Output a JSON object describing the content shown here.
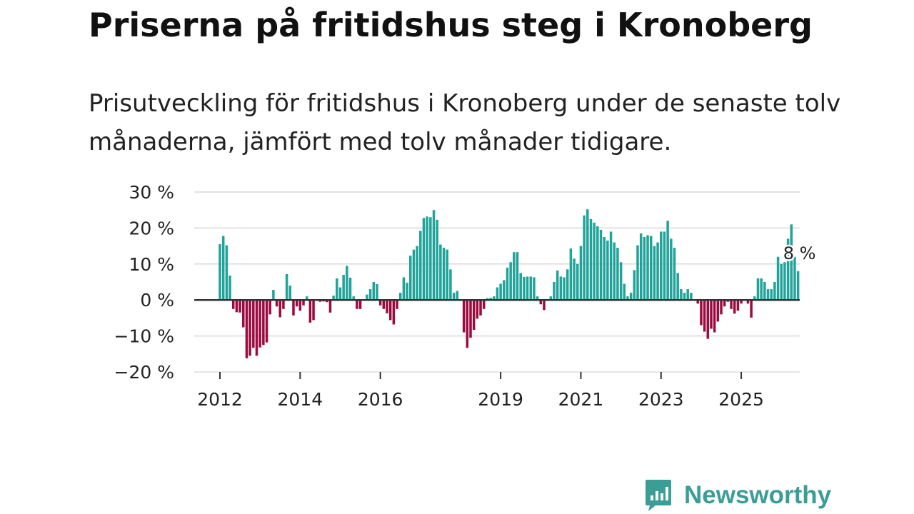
{
  "chart_data": {
    "type": "bar",
    "title": "Priserna på fritidshus steg i Kronoberg",
    "subtitle": "Prisutveckling för fritidshus i Kronoberg under de senaste tolv månaderna, jämfört med tolv månader tidigare.",
    "ylabel": "",
    "xlabel": "",
    "ylim": [
      -20,
      30
    ],
    "yticks": [
      30,
      20,
      10,
      0,
      -10,
      -20
    ],
    "ytick_labels": [
      "30 %",
      "20 %",
      "10 %",
      "0 %",
      "−10 %",
      "−20 %"
    ],
    "xticks": [
      2012,
      2014,
      2016,
      2019,
      2021,
      2023,
      2025
    ],
    "start": {
      "year": 2012,
      "month": 1
    },
    "positive_color": "#20a39a",
    "negative_color": "#9b0b3f",
    "annotation": "8 %",
    "values": [
      15.5,
      17.8,
      15.2,
      6.8,
      -2.5,
      -3.4,
      -3.5,
      -7.6,
      -16.2,
      -15.5,
      -13.3,
      -15.5,
      -13.2,
      -12.5,
      -11.8,
      -4.0,
      2.8,
      -1.8,
      -4.8,
      -2.5,
      7.2,
      4.0,
      -4.3,
      -1.8,
      -3.0,
      -1.5,
      1.0,
      -6.3,
      -5.6,
      0.0,
      -0.5,
      -0.4,
      -0.6,
      -3.5,
      1.2,
      6.0,
      3.5,
      7.0,
      9.5,
      6.2,
      1.0,
      -2.5,
      -2.5,
      0.0,
      1.5,
      3.0,
      5.0,
      4.4,
      -1.5,
      -2.5,
      -3.7,
      -5.6,
      -6.8,
      -2.5,
      2.0,
      6.3,
      4.8,
      12.3,
      14.0,
      15.0,
      19.2,
      22.8,
      23.2,
      23.0,
      25.0,
      22.3,
      15.4,
      14.5,
      14.0,
      8.5,
      2.0,
      2.5,
      0.0,
      -9.0,
      -13.3,
      -10.5,
      -8.3,
      -5.2,
      -4.3,
      -2.5,
      0.5,
      0.6,
      1.0,
      3.5,
      4.5,
      5.5,
      9.0,
      10.5,
      13.3,
      13.3,
      7.5,
      6.4,
      6.5,
      6.5,
      6.3,
      1.0,
      -1.2,
      -2.8,
      0.0,
      1.0,
      5.0,
      8.2,
      6.5,
      6.3,
      8.5,
      14.3,
      11.5,
      10.0,
      15.0,
      23.5,
      25.2,
      22.5,
      21.5,
      20.5,
      19.5,
      17.5,
      16.5,
      19.0,
      16.0,
      14.5,
      10.5,
      4.5,
      1.0,
      2.0,
      8.3,
      15.2,
      18.5,
      17.5,
      18.0,
      17.8,
      15.0,
      16.0,
      19.0,
      19.0,
      22.0,
      17.0,
      14.5,
      7.5,
      3.0,
      2.0,
      3.0,
      2.0,
      0.0,
      -1.0,
      -7.0,
      -8.8,
      -10.8,
      -8.0,
      -9.0,
      -6.0,
      -4.0,
      -1.8,
      -0.5,
      -2.5,
      -3.8,
      -3.0,
      -1.0,
      0.0,
      -1.0,
      -4.9,
      1.0,
      6.0,
      6.0,
      5.0,
      3.0,
      3.0,
      5.0,
      12.0,
      10.0,
      10.5,
      17.0,
      21.0,
      12.0,
      8.0
    ]
  },
  "brand": {
    "name": "Newsworthy",
    "icon": "chart-bubble-icon",
    "color": "#3a9e97"
  }
}
